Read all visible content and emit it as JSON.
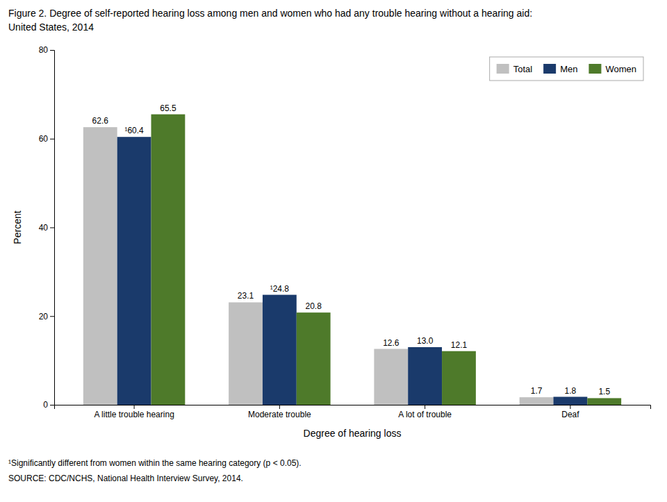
{
  "chart_data": {
    "type": "bar",
    "title": "Figure 2. Degree of self-reported hearing loss among men and women who had any trouble hearing without a hearing aid:",
    "subtitle": "United States, 2014",
    "categories": [
      "A little trouble hearing",
      "Moderate trouble",
      "A lot of trouble",
      "Deaf"
    ],
    "series": [
      {
        "name": "Total",
        "color": "#c0c0c0",
        "values": [
          62.6,
          23.1,
          12.6,
          1.7
        ],
        "value_labels": [
          "62.6",
          "23.1",
          "12.6",
          "1.7"
        ]
      },
      {
        "name": "Men",
        "color": "#1a3a6b",
        "values": [
          60.4,
          24.8,
          13.0,
          1.8
        ],
        "value_labels": [
          "¹60.4",
          "¹24.8",
          "13.0",
          "1.8"
        ]
      },
      {
        "name": "Women",
        "color": "#4e7a2a",
        "values": [
          65.5,
          20.8,
          12.1,
          1.5
        ],
        "value_labels": [
          "65.5",
          "20.8",
          "12.1",
          "1.5"
        ]
      }
    ],
    "xlabel": "Degree of hearing loss",
    "ylabel": "Percent",
    "ylim": [
      0,
      80
    ],
    "yticks": [
      0,
      20,
      40,
      60,
      80
    ],
    "grid": false,
    "legend": "upper right",
    "data_labels": true,
    "annotations": [
      "¹Significantly different from women within the same hearing category (p < 0.05).",
      "SOURCE: CDC/NCHS, National Health Interview Survey, 2014."
    ]
  }
}
